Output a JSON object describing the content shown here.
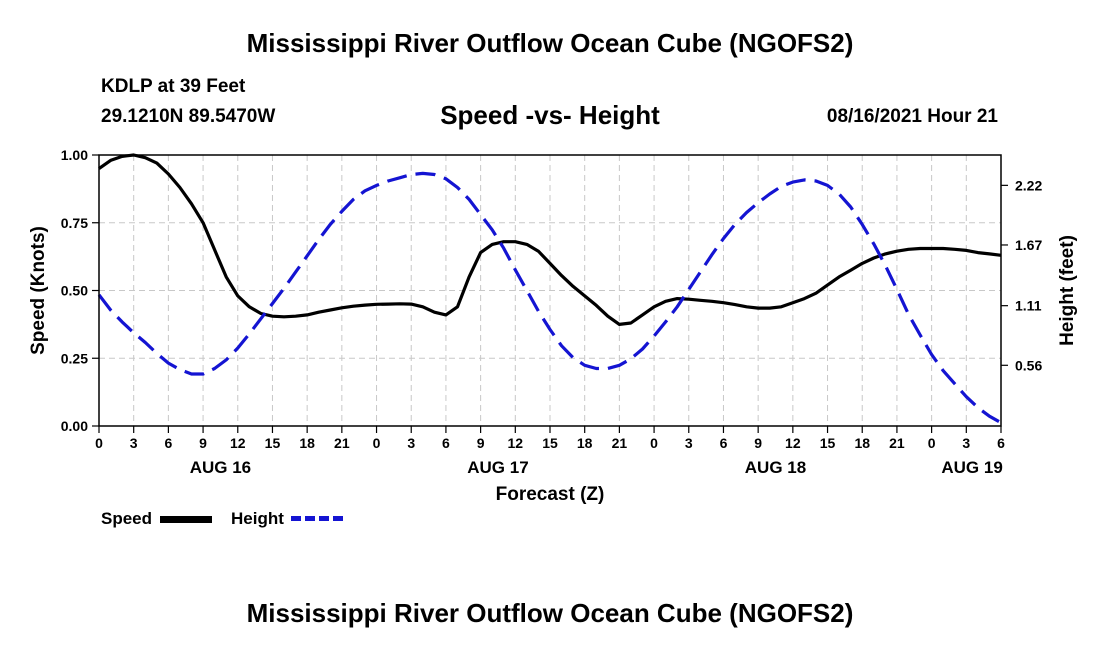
{
  "header": {
    "title": "Mississippi River Outflow Ocean Cube (NGOFS2)",
    "station": "KDLP at 39 Feet",
    "coords": "29.1210N  89.5470W",
    "subtitle": "Speed -vs- Height",
    "timestamp": "08/16/2021 Hour 21"
  },
  "footer": {
    "title": "Mississippi River Outflow Ocean Cube (NGOFS2)"
  },
  "legend": {
    "speed_label": "Speed",
    "height_label": "Height"
  },
  "colors": {
    "speed": "#000000",
    "height": "#1414d2",
    "grid": "#c8c8c8"
  },
  "chart_data": {
    "type": "line",
    "title": "Speed -vs- Height",
    "xlabel": "Forecast (Z)",
    "ylabel_left": "Speed (Knots)",
    "ylabel_right": "Height (feet)",
    "x_range_hours": [
      0,
      78
    ],
    "ylim_left": [
      0,
      1
    ],
    "ylim_right": [
      0.0,
      2.5
    ],
    "x_tick_hours": [
      0,
      3,
      6,
      9,
      12,
      15,
      18,
      21,
      24,
      27,
      30,
      33,
      36,
      39,
      42,
      45,
      48,
      51,
      54,
      57,
      60,
      63,
      66,
      69,
      72,
      75,
      78
    ],
    "x_tick_labels": [
      "0",
      "3",
      "6",
      "9",
      "12",
      "15",
      "18",
      "21",
      "0",
      "3",
      "6",
      "9",
      "12",
      "15",
      "18",
      "21",
      "0",
      "3",
      "6",
      "9",
      "12",
      "15",
      "18",
      "21",
      "0",
      "3",
      "6"
    ],
    "date_labels": [
      {
        "hour": 10.5,
        "label": "AUG 16"
      },
      {
        "hour": 34.5,
        "label": "AUG 17"
      },
      {
        "hour": 58.5,
        "label": "AUG 18"
      },
      {
        "hour": 75.5,
        "label": "AUG 19"
      }
    ],
    "y_left_ticks": [
      0,
      0.25,
      0.5,
      0.75,
      1.0
    ],
    "y_left_tick_labels": [
      "0.00",
      "0.25",
      "0.50",
      "0.75",
      "1.00"
    ],
    "y_right_ticks": [
      0.56,
      1.11,
      1.67,
      2.22
    ],
    "y_right_tick_labels": [
      "0.56",
      "1.11",
      "1.67",
      "2.22"
    ],
    "series": [
      {
        "name": "Speed",
        "axis": "left",
        "style": "solid",
        "x": [
          0,
          1,
          2,
          3,
          4,
          5,
          6,
          7,
          8,
          9,
          10,
          11,
          12,
          13,
          14,
          15,
          16,
          17,
          18,
          19,
          20,
          21,
          22,
          23,
          24,
          25,
          26,
          27,
          28,
          29,
          30,
          31,
          32,
          33,
          34,
          35,
          36,
          37,
          38,
          39,
          40,
          41,
          42,
          43,
          44,
          45,
          46,
          47,
          48,
          49,
          50,
          51,
          52,
          53,
          54,
          55,
          56,
          57,
          58,
          59,
          60,
          61,
          62,
          63,
          64,
          65,
          66,
          67,
          68,
          69,
          70,
          71,
          72,
          73,
          74,
          75,
          76,
          77,
          78
        ],
        "values": [
          0.95,
          0.98,
          0.995,
          1.0,
          0.99,
          0.97,
          0.93,
          0.88,
          0.82,
          0.75,
          0.65,
          0.55,
          0.48,
          0.44,
          0.415,
          0.405,
          0.403,
          0.405,
          0.41,
          0.42,
          0.428,
          0.436,
          0.442,
          0.446,
          0.449,
          0.45,
          0.451,
          0.45,
          0.44,
          0.42,
          0.41,
          0.44,
          0.55,
          0.64,
          0.67,
          0.68,
          0.68,
          0.67,
          0.645,
          0.6,
          0.555,
          0.515,
          0.48,
          0.445,
          0.405,
          0.375,
          0.38,
          0.41,
          0.44,
          0.46,
          0.47,
          0.468,
          0.464,
          0.46,
          0.455,
          0.448,
          0.44,
          0.435,
          0.435,
          0.44,
          0.455,
          0.47,
          0.49,
          0.52,
          0.55,
          0.575,
          0.6,
          0.62,
          0.635,
          0.645,
          0.652,
          0.655,
          0.655,
          0.655,
          0.652,
          0.648,
          0.64,
          0.635,
          0.63
        ]
      },
      {
        "name": "Height",
        "axis": "right",
        "style": "dashed",
        "x": [
          0,
          1,
          2,
          3,
          4,
          5,
          6,
          7,
          8,
          9,
          10,
          11,
          12,
          13,
          14,
          15,
          16,
          17,
          18,
          19,
          20,
          21,
          22,
          23,
          24,
          25,
          26,
          27,
          28,
          29,
          30,
          31,
          32,
          33,
          34,
          35,
          36,
          37,
          38,
          39,
          40,
          41,
          42,
          43,
          44,
          45,
          46,
          47,
          48,
          49,
          50,
          51,
          52,
          53,
          54,
          55,
          56,
          57,
          58,
          59,
          60,
          61,
          62,
          63,
          64,
          65,
          66,
          67,
          68,
          69,
          70,
          71,
          72,
          73,
          74,
          75,
          76,
          77,
          78
        ],
        "values": [
          1.21,
          1.07,
          0.96,
          0.86,
          0.77,
          0.67,
          0.58,
          0.52,
          0.48,
          0.48,
          0.53,
          0.61,
          0.72,
          0.85,
          0.99,
          1.13,
          1.27,
          1.42,
          1.57,
          1.72,
          1.86,
          1.98,
          2.09,
          2.17,
          2.22,
          2.26,
          2.29,
          2.32,
          2.33,
          2.32,
          2.28,
          2.2,
          2.09,
          1.95,
          1.81,
          1.64,
          1.44,
          1.25,
          1.06,
          0.89,
          0.74,
          0.63,
          0.56,
          0.53,
          0.53,
          0.56,
          0.62,
          0.71,
          0.83,
          0.96,
          1.1,
          1.26,
          1.42,
          1.58,
          1.73,
          1.86,
          1.97,
          2.06,
          2.14,
          2.21,
          2.25,
          2.27,
          2.26,
          2.22,
          2.14,
          2.02,
          1.86,
          1.68,
          1.48,
          1.26,
          1.03,
          0.84,
          0.66,
          0.51,
          0.39,
          0.27,
          0.17,
          0.09,
          0.03
        ]
      }
    ]
  }
}
